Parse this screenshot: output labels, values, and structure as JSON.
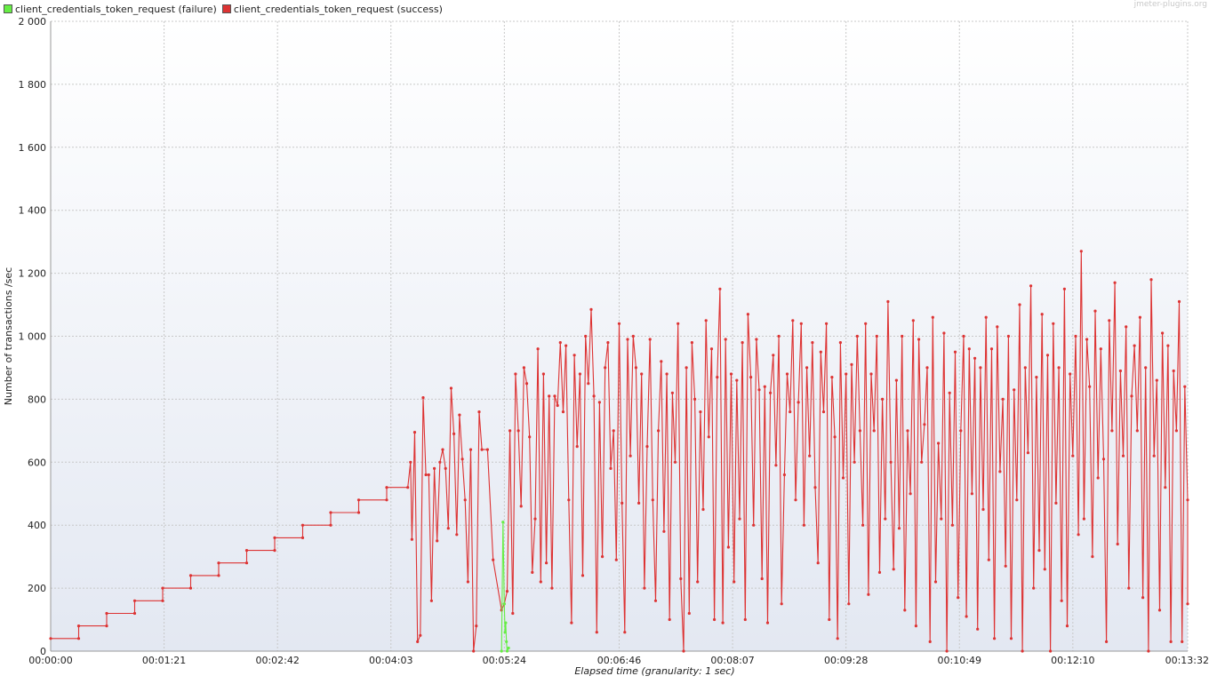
{
  "watermark": "jmeter-plugins.org",
  "colors": {
    "failure": "#66ee44",
    "success": "#dd3333",
    "grid": "#c8c8c8"
  },
  "chart_data": {
    "type": "line",
    "title": "",
    "xlabel": "Elapsed time (granularity: 1 sec)",
    "ylabel": "Number of transactions /sec",
    "xlim_seconds": [
      0,
      812
    ],
    "ylim": [
      0,
      2000
    ],
    "y_ticks": [
      0,
      200,
      400,
      600,
      800,
      1000,
      1200,
      1400,
      1600,
      1800,
      2000
    ],
    "y_tick_labels": [
      "0",
      "200",
      "400",
      "600",
      "800",
      "1 000",
      "1 200",
      "1 400",
      "1 600",
      "1 800",
      "2 000"
    ],
    "x_ticks": [
      "00:00:00",
      "00:01:21",
      "00:02:42",
      "00:04:03",
      "00:05:24",
      "00:06:46",
      "00:08:07",
      "00:09:28",
      "00:10:49",
      "00:12:10",
      "00:13:32"
    ],
    "x_tick_seconds": [
      0,
      81,
      162,
      243,
      324,
      406,
      487,
      568,
      649,
      730,
      812
    ],
    "grid": true,
    "legend_position": "top-left",
    "series": [
      {
        "name": "client_credentials_token_request (failure)",
        "color": "#66ee44",
        "points": [
          [
            322,
            0
          ],
          [
            323,
            410
          ],
          [
            324,
            150
          ],
          [
            324.5,
            60
          ],
          [
            325,
            90
          ],
          [
            325.5,
            30
          ],
          [
            326,
            0
          ],
          [
            327,
            10
          ]
        ]
      },
      {
        "name": "client_credentials_token_request (success)",
        "color": "#dd3333",
        "points": [
          [
            0,
            40
          ],
          [
            20,
            40
          ],
          [
            20,
            80
          ],
          [
            40,
            80
          ],
          [
            40,
            120
          ],
          [
            60,
            120
          ],
          [
            60,
            160
          ],
          [
            80,
            160
          ],
          [
            80,
            200
          ],
          [
            100,
            200
          ],
          [
            100,
            240
          ],
          [
            120,
            240
          ],
          [
            120,
            280
          ],
          [
            140,
            280
          ],
          [
            140,
            320
          ],
          [
            160,
            320
          ],
          [
            160,
            360
          ],
          [
            180,
            360
          ],
          [
            180,
            400
          ],
          [
            200,
            400
          ],
          [
            200,
            440
          ],
          [
            220,
            440
          ],
          [
            220,
            480
          ],
          [
            240,
            480
          ],
          [
            240,
            520
          ],
          [
            255,
            520
          ],
          [
            257,
            600
          ],
          [
            258,
            355
          ],
          [
            260,
            695
          ],
          [
            262,
            30
          ],
          [
            264,
            50
          ],
          [
            266,
            805
          ],
          [
            268,
            560
          ],
          [
            270,
            560
          ],
          [
            272,
            160
          ],
          [
            274,
            580
          ],
          [
            276,
            350
          ],
          [
            278,
            600
          ],
          [
            280,
            640
          ],
          [
            282,
            580
          ],
          [
            284,
            390
          ],
          [
            286,
            835
          ],
          [
            288,
            690
          ],
          [
            290,
            370
          ],
          [
            292,
            750
          ],
          [
            294,
            610
          ],
          [
            296,
            480
          ],
          [
            298,
            220
          ],
          [
            300,
            640
          ],
          [
            302,
            0
          ],
          [
            304,
            80
          ],
          [
            306,
            760
          ],
          [
            308,
            640
          ],
          [
            312,
            640
          ],
          [
            316,
            290
          ],
          [
            322,
            130
          ],
          [
            324,
            150
          ],
          [
            326,
            190
          ],
          [
            328,
            700
          ],
          [
            330,
            120
          ],
          [
            332,
            880
          ],
          [
            334,
            700
          ],
          [
            336,
            460
          ],
          [
            338,
            900
          ],
          [
            340,
            850
          ],
          [
            342,
            680
          ],
          [
            344,
            250
          ],
          [
            346,
            420
          ],
          [
            348,
            960
          ],
          [
            350,
            220
          ],
          [
            352,
            880
          ],
          [
            354,
            280
          ],
          [
            356,
            810
          ],
          [
            358,
            200
          ],
          [
            360,
            810
          ],
          [
            362,
            780
          ],
          [
            364,
            980
          ],
          [
            366,
            760
          ],
          [
            368,
            970
          ],
          [
            370,
            480
          ],
          [
            372,
            90
          ],
          [
            374,
            940
          ],
          [
            376,
            650
          ],
          [
            378,
            880
          ],
          [
            380,
            240
          ],
          [
            382,
            1000
          ],
          [
            384,
            850
          ],
          [
            386,
            1085
          ],
          [
            388,
            810
          ],
          [
            390,
            60
          ],
          [
            392,
            790
          ],
          [
            394,
            300
          ],
          [
            396,
            900
          ],
          [
            398,
            980
          ],
          [
            400,
            580
          ],
          [
            402,
            700
          ],
          [
            404,
            290
          ],
          [
            406,
            1040
          ],
          [
            408,
            470
          ],
          [
            410,
            60
          ],
          [
            412,
            990
          ],
          [
            414,
            620
          ],
          [
            416,
            1000
          ],
          [
            418,
            900
          ],
          [
            420,
            470
          ],
          [
            422,
            880
          ],
          [
            424,
            200
          ],
          [
            426,
            650
          ],
          [
            428,
            990
          ],
          [
            430,
            480
          ],
          [
            432,
            160
          ],
          [
            434,
            700
          ],
          [
            436,
            920
          ],
          [
            438,
            380
          ],
          [
            440,
            880
          ],
          [
            442,
            100
          ],
          [
            444,
            820
          ],
          [
            446,
            600
          ],
          [
            448,
            1040
          ],
          [
            450,
            230
          ],
          [
            452,
            0
          ],
          [
            454,
            900
          ],
          [
            456,
            120
          ],
          [
            458,
            980
          ],
          [
            460,
            800
          ],
          [
            462,
            220
          ],
          [
            464,
            760
          ],
          [
            466,
            450
          ],
          [
            468,
            1050
          ],
          [
            470,
            680
          ],
          [
            472,
            960
          ],
          [
            474,
            100
          ],
          [
            476,
            870
          ],
          [
            478,
            1150
          ],
          [
            480,
            90
          ],
          [
            482,
            990
          ],
          [
            484,
            330
          ],
          [
            486,
            880
          ],
          [
            488,
            220
          ],
          [
            490,
            860
          ],
          [
            492,
            420
          ],
          [
            494,
            980
          ],
          [
            496,
            100
          ],
          [
            498,
            1070
          ],
          [
            500,
            870
          ],
          [
            502,
            400
          ],
          [
            504,
            990
          ],
          [
            506,
            830
          ],
          [
            508,
            230
          ],
          [
            510,
            840
          ],
          [
            512,
            90
          ],
          [
            514,
            820
          ],
          [
            516,
            940
          ],
          [
            518,
            590
          ],
          [
            520,
            1000
          ],
          [
            522,
            150
          ],
          [
            524,
            560
          ],
          [
            526,
            880
          ],
          [
            528,
            760
          ],
          [
            530,
            1050
          ],
          [
            532,
            480
          ],
          [
            534,
            790
          ],
          [
            536,
            1040
          ],
          [
            538,
            400
          ],
          [
            540,
            900
          ],
          [
            542,
            620
          ],
          [
            544,
            980
          ],
          [
            546,
            520
          ],
          [
            548,
            280
          ],
          [
            550,
            950
          ],
          [
            552,
            760
          ],
          [
            554,
            1040
          ],
          [
            556,
            100
          ],
          [
            558,
            870
          ],
          [
            560,
            680
          ],
          [
            562,
            40
          ],
          [
            564,
            980
          ],
          [
            566,
            550
          ],
          [
            568,
            880
          ],
          [
            570,
            150
          ],
          [
            572,
            910
          ],
          [
            574,
            600
          ],
          [
            576,
            1000
          ],
          [
            578,
            700
          ],
          [
            580,
            400
          ],
          [
            582,
            1040
          ],
          [
            584,
            180
          ],
          [
            586,
            880
          ],
          [
            588,
            700
          ],
          [
            590,
            1000
          ],
          [
            592,
            250
          ],
          [
            594,
            800
          ],
          [
            596,
            420
          ],
          [
            598,
            1110
          ],
          [
            600,
            600
          ],
          [
            602,
            260
          ],
          [
            604,
            860
          ],
          [
            606,
            390
          ],
          [
            608,
            1000
          ],
          [
            610,
            130
          ],
          [
            612,
            700
          ],
          [
            614,
            500
          ],
          [
            616,
            1050
          ],
          [
            618,
            80
          ],
          [
            620,
            990
          ],
          [
            622,
            600
          ],
          [
            624,
            720
          ],
          [
            626,
            900
          ],
          [
            628,
            30
          ],
          [
            630,
            1060
          ],
          [
            632,
            220
          ],
          [
            634,
            660
          ],
          [
            636,
            420
          ],
          [
            638,
            1010
          ],
          [
            640,
            0
          ],
          [
            642,
            820
          ],
          [
            644,
            400
          ],
          [
            646,
            950
          ],
          [
            648,
            170
          ],
          [
            650,
            700
          ],
          [
            652,
            1000
          ],
          [
            654,
            110
          ],
          [
            656,
            960
          ],
          [
            658,
            500
          ],
          [
            660,
            930
          ],
          [
            662,
            70
          ],
          [
            664,
            900
          ],
          [
            666,
            450
          ],
          [
            668,
            1060
          ],
          [
            670,
            290
          ],
          [
            672,
            960
          ],
          [
            674,
            40
          ],
          [
            676,
            1030
          ],
          [
            678,
            570
          ],
          [
            680,
            800
          ],
          [
            682,
            270
          ],
          [
            684,
            1000
          ],
          [
            686,
            40
          ],
          [
            688,
            830
          ],
          [
            690,
            480
          ],
          [
            692,
            1100
          ],
          [
            694,
            0
          ],
          [
            696,
            900
          ],
          [
            698,
            630
          ],
          [
            700,
            1160
          ],
          [
            702,
            200
          ],
          [
            704,
            870
          ],
          [
            706,
            320
          ],
          [
            708,
            1070
          ],
          [
            710,
            260
          ],
          [
            712,
            940
          ],
          [
            714,
            0
          ],
          [
            716,
            1040
          ],
          [
            718,
            470
          ],
          [
            720,
            900
          ],
          [
            722,
            160
          ],
          [
            724,
            1150
          ],
          [
            726,
            80
          ],
          [
            728,
            880
          ],
          [
            730,
            620
          ],
          [
            732,
            1000
          ],
          [
            734,
            370
          ],
          [
            736,
            1270
          ],
          [
            738,
            420
          ],
          [
            740,
            990
          ],
          [
            742,
            840
          ],
          [
            744,
            300
          ],
          [
            746,
            1080
          ],
          [
            748,
            550
          ],
          [
            750,
            960
          ],
          [
            752,
            610
          ],
          [
            754,
            30
          ],
          [
            756,
            1050
          ],
          [
            758,
            700
          ],
          [
            760,
            1170
          ],
          [
            762,
            340
          ],
          [
            764,
            890
          ],
          [
            766,
            620
          ],
          [
            768,
            1030
          ],
          [
            770,
            200
          ],
          [
            772,
            810
          ],
          [
            774,
            970
          ],
          [
            776,
            700
          ],
          [
            778,
            1060
          ],
          [
            780,
            170
          ],
          [
            782,
            900
          ],
          [
            784,
            0
          ],
          [
            786,
            1180
          ],
          [
            788,
            620
          ],
          [
            790,
            860
          ],
          [
            792,
            130
          ],
          [
            794,
            1010
          ],
          [
            796,
            520
          ],
          [
            798,
            970
          ],
          [
            800,
            30
          ],
          [
            802,
            890
          ],
          [
            804,
            700
          ],
          [
            806,
            1110
          ],
          [
            808,
            30
          ],
          [
            810,
            840
          ],
          [
            812,
            480
          ],
          [
            812,
            150
          ]
        ]
      }
    ]
  }
}
